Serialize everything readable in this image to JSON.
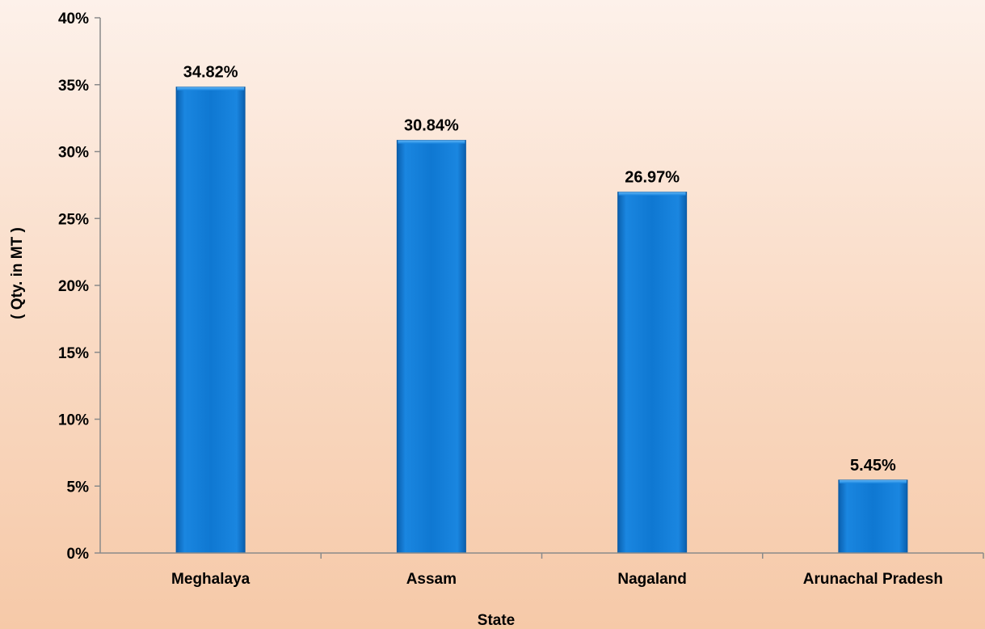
{
  "chart_data": {
    "type": "bar",
    "title": "",
    "xlabel": "State",
    "ylabel": "( Qty. in MT )",
    "categories": [
      "Meghalaya",
      "Assam",
      "Nagaland",
      "Arunachal Pradesh"
    ],
    "values": [
      34.82,
      30.84,
      26.97,
      5.45
    ],
    "value_labels": [
      "34.82%",
      "30.84%",
      "26.97%",
      "5.45%"
    ],
    "ylim": [
      0,
      40
    ],
    "yticks": [
      0,
      5,
      10,
      15,
      20,
      25,
      30,
      35,
      40
    ],
    "ytick_labels": [
      "0%",
      "5%",
      "10%",
      "15%",
      "20%",
      "25%",
      "30%",
      "35%",
      "40%"
    ],
    "grid": false,
    "legend": "none",
    "bar_color": "#0f78d2"
  }
}
